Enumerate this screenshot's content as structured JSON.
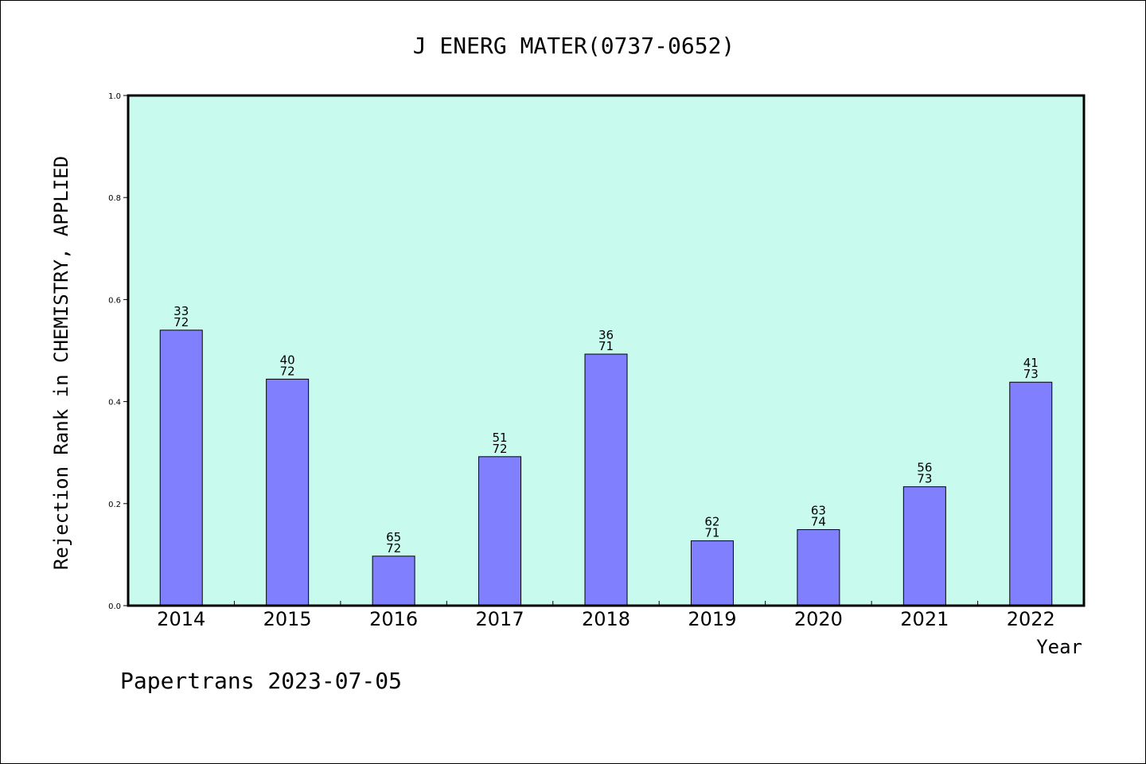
{
  "footer": "Papertrans 2023-07-05",
  "colors": {
    "plot_bg": "#c8fbee",
    "bar": "#8080ff",
    "axis": "#000000"
  },
  "chart_data": {
    "type": "bar",
    "title": "J ENERG MATER(0737-0652)",
    "xlabel": "Year",
    "ylabel": "Rejection Rank in CHEMISTRY, APPLIED",
    "ylim": [
      0,
      1.0
    ],
    "yticks": [
      "0.0",
      "0.2",
      "0.4",
      "0.6",
      "0.8",
      "1.0"
    ],
    "grid": false,
    "categories": [
      "2014",
      "2015",
      "2016",
      "2017",
      "2018",
      "2019",
      "2020",
      "2021",
      "2022"
    ],
    "values": [
      0.54,
      0.444,
      0.097,
      0.292,
      0.493,
      0.127,
      0.149,
      0.233,
      0.438
    ],
    "rank_labels": [
      [
        "33",
        "72"
      ],
      [
        "40",
        "72"
      ],
      [
        "65",
        "72"
      ],
      [
        "51",
        "72"
      ],
      [
        "36",
        "71"
      ],
      [
        "62",
        "71"
      ],
      [
        "63",
        "74"
      ],
      [
        "56",
        "73"
      ],
      [
        "41",
        "73"
      ]
    ]
  }
}
